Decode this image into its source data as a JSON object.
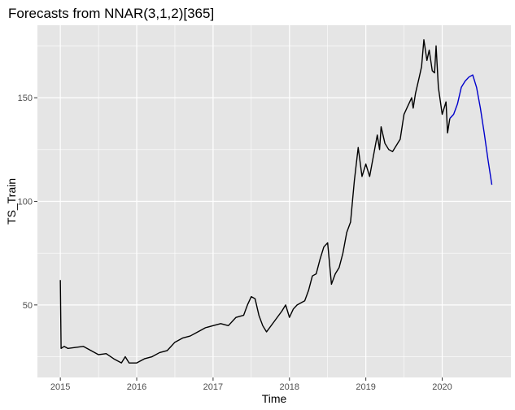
{
  "chart_data": {
    "type": "line",
    "title": "Forecasts from NNAR(3,1,2)[365]",
    "xlabel": "Time",
    "ylabel": "TS_Train",
    "xlim": [
      2014.7,
      2020.9
    ],
    "ylim": [
      15,
      185
    ],
    "x_ticks": [
      2015,
      2016,
      2017,
      2018,
      2019,
      2020
    ],
    "x_tick_labels": [
      "2015",
      "2016",
      "2017",
      "2018",
      "2019",
      "2020"
    ],
    "y_ticks": [
      50,
      100,
      150
    ],
    "y_tick_labels": [
      "50",
      "100",
      "150"
    ],
    "grid": true,
    "panel_background": "#e5e5e5",
    "grid_color": "#ffffff",
    "series": [
      {
        "role": "observed",
        "color": "#000000",
        "points": [
          [
            2015.0,
            62
          ],
          [
            2015.01,
            29
          ],
          [
            2015.05,
            30
          ],
          [
            2015.1,
            29
          ],
          [
            2015.2,
            29.5
          ],
          [
            2015.3,
            30
          ],
          [
            2015.4,
            28
          ],
          [
            2015.5,
            26
          ],
          [
            2015.6,
            26.5
          ],
          [
            2015.7,
            24
          ],
          [
            2015.8,
            22
          ],
          [
            2015.85,
            25
          ],
          [
            2015.9,
            22
          ],
          [
            2016.0,
            22
          ],
          [
            2016.1,
            24
          ],
          [
            2016.2,
            25
          ],
          [
            2016.3,
            27
          ],
          [
            2016.4,
            28
          ],
          [
            2016.5,
            32
          ],
          [
            2016.6,
            34
          ],
          [
            2016.7,
            35
          ],
          [
            2016.8,
            37
          ],
          [
            2016.9,
            39
          ],
          [
            2017.0,
            40
          ],
          [
            2017.1,
            41
          ],
          [
            2017.2,
            40
          ],
          [
            2017.3,
            44
          ],
          [
            2017.4,
            45
          ],
          [
            2017.45,
            50
          ],
          [
            2017.5,
            54
          ],
          [
            2017.55,
            53
          ],
          [
            2017.6,
            45
          ],
          [
            2017.65,
            40
          ],
          [
            2017.7,
            37
          ],
          [
            2017.8,
            42
          ],
          [
            2017.9,
            47
          ],
          [
            2017.95,
            50
          ],
          [
            2018.0,
            44
          ],
          [
            2018.05,
            48
          ],
          [
            2018.1,
            50
          ],
          [
            2018.2,
            52
          ],
          [
            2018.25,
            57
          ],
          [
            2018.3,
            64
          ],
          [
            2018.35,
            65
          ],
          [
            2018.4,
            72
          ],
          [
            2018.45,
            78
          ],
          [
            2018.5,
            80
          ],
          [
            2018.55,
            60
          ],
          [
            2018.6,
            65
          ],
          [
            2018.65,
            68
          ],
          [
            2018.7,
            75
          ],
          [
            2018.75,
            85
          ],
          [
            2018.8,
            90
          ],
          [
            2018.85,
            110
          ],
          [
            2018.9,
            126
          ],
          [
            2018.95,
            112
          ],
          [
            2019.0,
            118
          ],
          [
            2019.05,
            112
          ],
          [
            2019.1,
            122
          ],
          [
            2019.15,
            132
          ],
          [
            2019.18,
            125
          ],
          [
            2019.2,
            136
          ],
          [
            2019.25,
            128
          ],
          [
            2019.3,
            125
          ],
          [
            2019.35,
            124
          ],
          [
            2019.45,
            130
          ],
          [
            2019.5,
            142
          ],
          [
            2019.55,
            146
          ],
          [
            2019.6,
            150
          ],
          [
            2019.62,
            145
          ],
          [
            2019.65,
            152
          ],
          [
            2019.7,
            160
          ],
          [
            2019.73,
            165
          ],
          [
            2019.76,
            178
          ],
          [
            2019.8,
            168
          ],
          [
            2019.83,
            173
          ],
          [
            2019.87,
            163
          ],
          [
            2019.9,
            162
          ],
          [
            2019.92,
            175
          ],
          [
            2019.95,
            155
          ],
          [
            2020.0,
            142
          ],
          [
            2020.05,
            148
          ],
          [
            2020.07,
            133
          ],
          [
            2020.1,
            140
          ]
        ]
      },
      {
        "role": "forecast",
        "color": "#0000cc",
        "points": [
          [
            2020.1,
            140
          ],
          [
            2020.15,
            142
          ],
          [
            2020.2,
            147
          ],
          [
            2020.25,
            155
          ],
          [
            2020.3,
            158
          ],
          [
            2020.35,
            160
          ],
          [
            2020.4,
            161
          ],
          [
            2020.45,
            155
          ],
          [
            2020.5,
            145
          ],
          [
            2020.55,
            133
          ],
          [
            2020.6,
            120
          ],
          [
            2020.65,
            108
          ]
        ]
      }
    ]
  }
}
